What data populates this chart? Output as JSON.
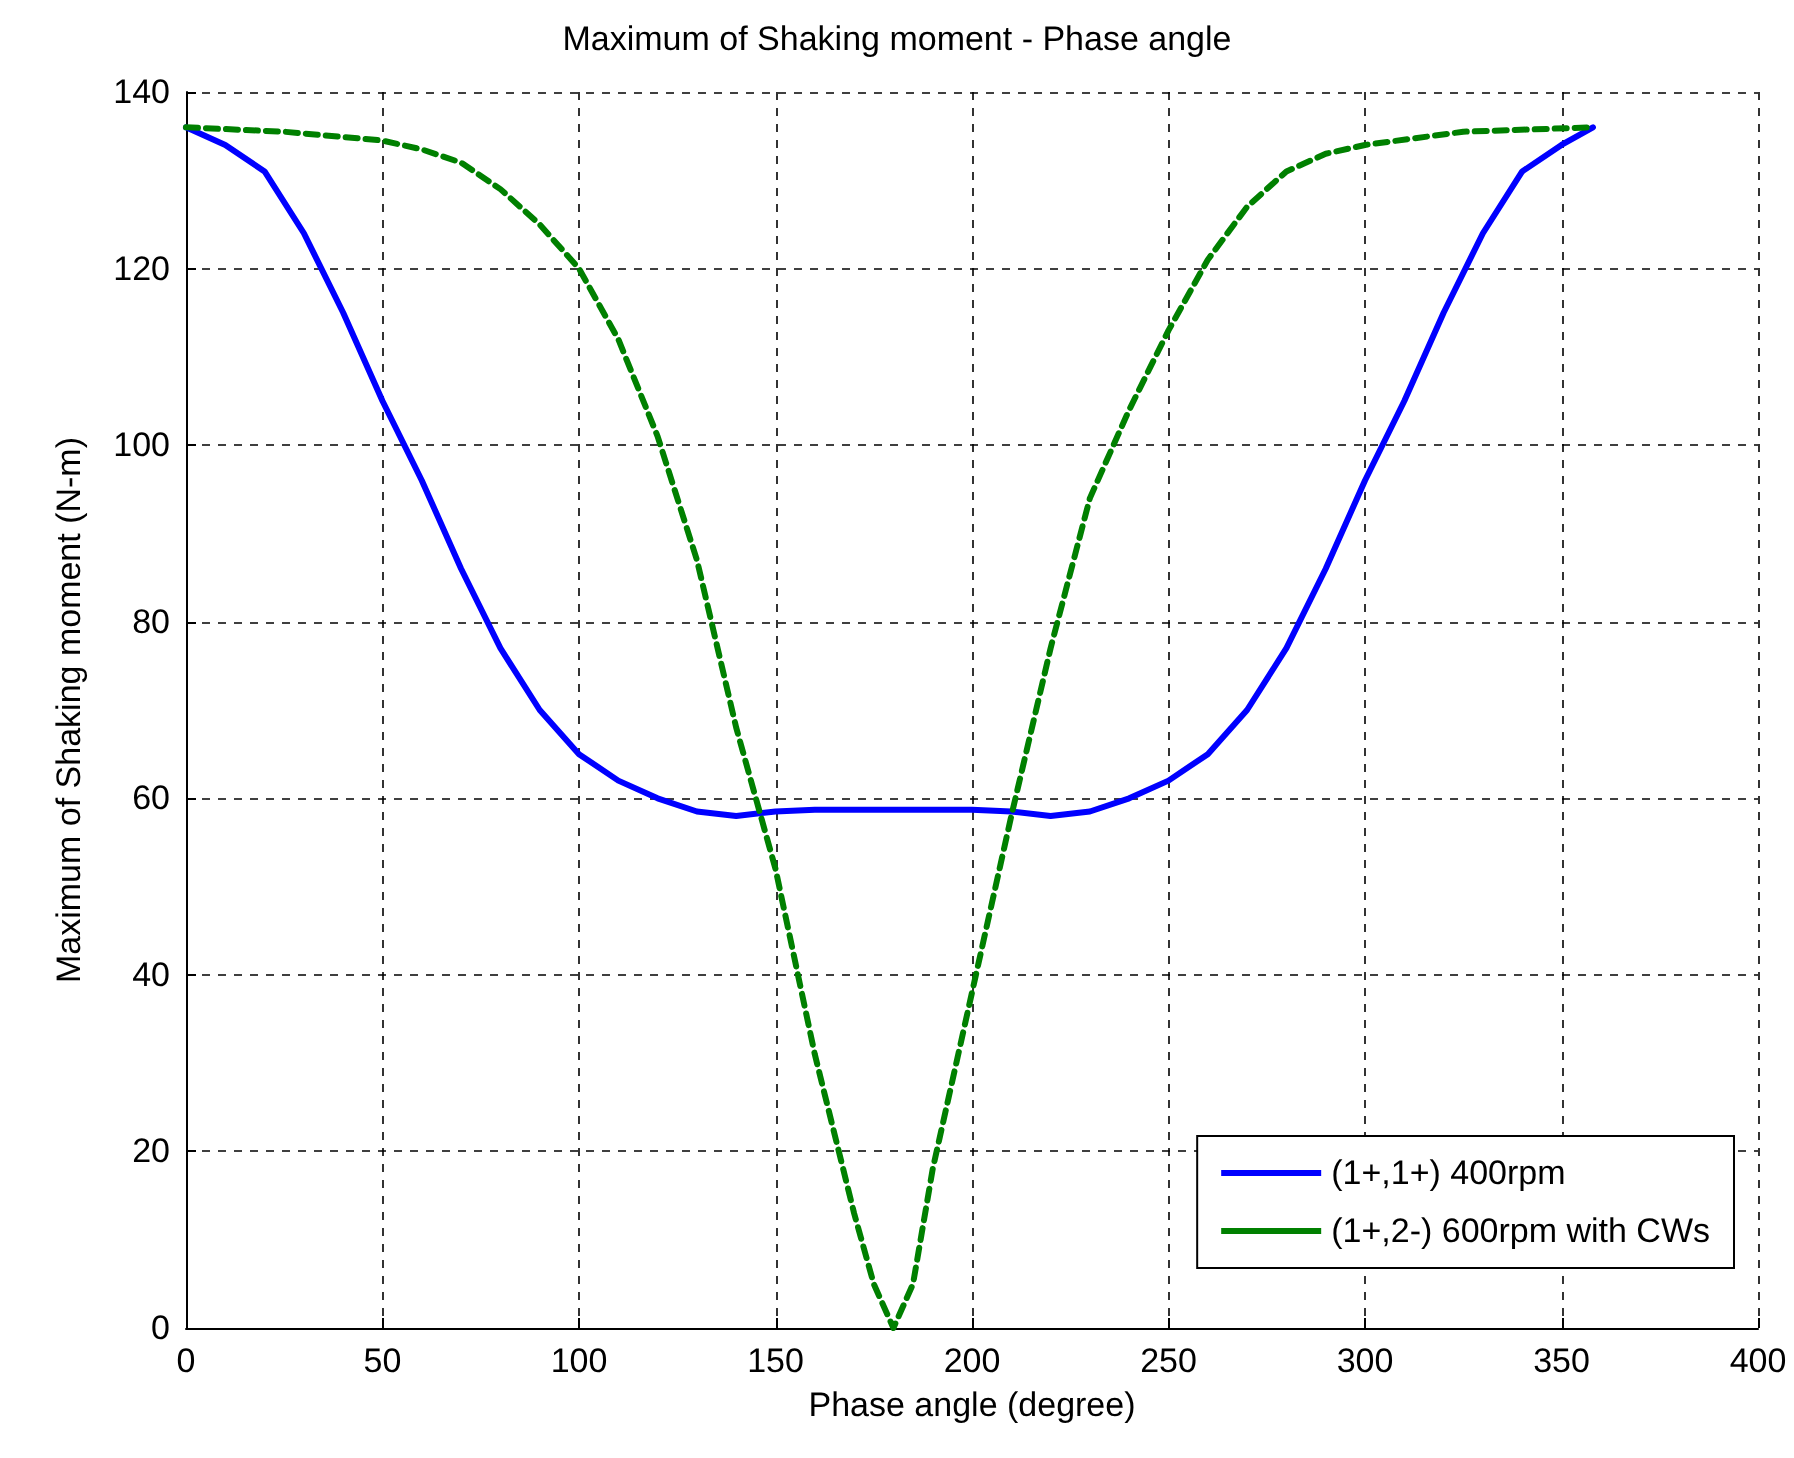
{
  "chart_data": {
    "type": "line",
    "title": "Maximum of Shaking moment - Phase angle",
    "xlabel": "Phase angle (degree)",
    "ylabel": "Maximum of Shaking moment (N-m)",
    "xlim": [
      0,
      400
    ],
    "xticks": [
      0,
      50,
      100,
      150,
      200,
      250,
      300,
      350,
      400
    ],
    "ylim": [
      0,
      140
    ],
    "yticks": [
      0,
      20,
      40,
      60,
      80,
      100,
      120,
      140
    ],
    "grid": true,
    "legend": "bottom right",
    "marker": "none",
    "series": [
      {
        "name": "(1+,1+) 400rpm",
        "color": "#0000ff",
        "line_style": "solid",
        "x": [
          0,
          10,
          20,
          30,
          40,
          50,
          60,
          70,
          80,
          90,
          100,
          110,
          120,
          130,
          140,
          150,
          160,
          170,
          180,
          190,
          200,
          210,
          220,
          230,
          240,
          250,
          260,
          270,
          280,
          290,
          300,
          310,
          320,
          330,
          340,
          350,
          358
        ],
        "values": [
          136,
          134,
          131,
          124,
          115,
          105,
          96,
          86,
          77,
          70,
          65,
          62,
          60,
          58.5,
          58,
          58.5,
          58.7,
          58.7,
          58.7,
          58.7,
          58.7,
          58.5,
          58,
          58.5,
          60,
          62,
          65,
          70,
          77,
          86,
          96,
          105,
          115,
          124,
          131,
          134,
          136
        ]
      },
      {
        "name": "(1+,2-) 600rpm with CWs",
        "color": "#008000",
        "line_style": "dashed",
        "x": [
          0,
          25,
          50,
          60,
          70,
          80,
          90,
          100,
          110,
          120,
          130,
          140,
          150,
          160,
          170,
          175,
          180,
          185,
          190,
          200,
          210,
          220,
          230,
          240,
          250,
          260,
          270,
          280,
          290,
          300,
          325,
          358
        ],
        "values": [
          136,
          135.5,
          134.5,
          133.5,
          132,
          129,
          125,
          120,
          112,
          101,
          87,
          68,
          52,
          31,
          13,
          5,
          0,
          5,
          18,
          38,
          58,
          77,
          94,
          104,
          113,
          121,
          127,
          131,
          133,
          134,
          135.5,
          136
        ]
      }
    ]
  }
}
